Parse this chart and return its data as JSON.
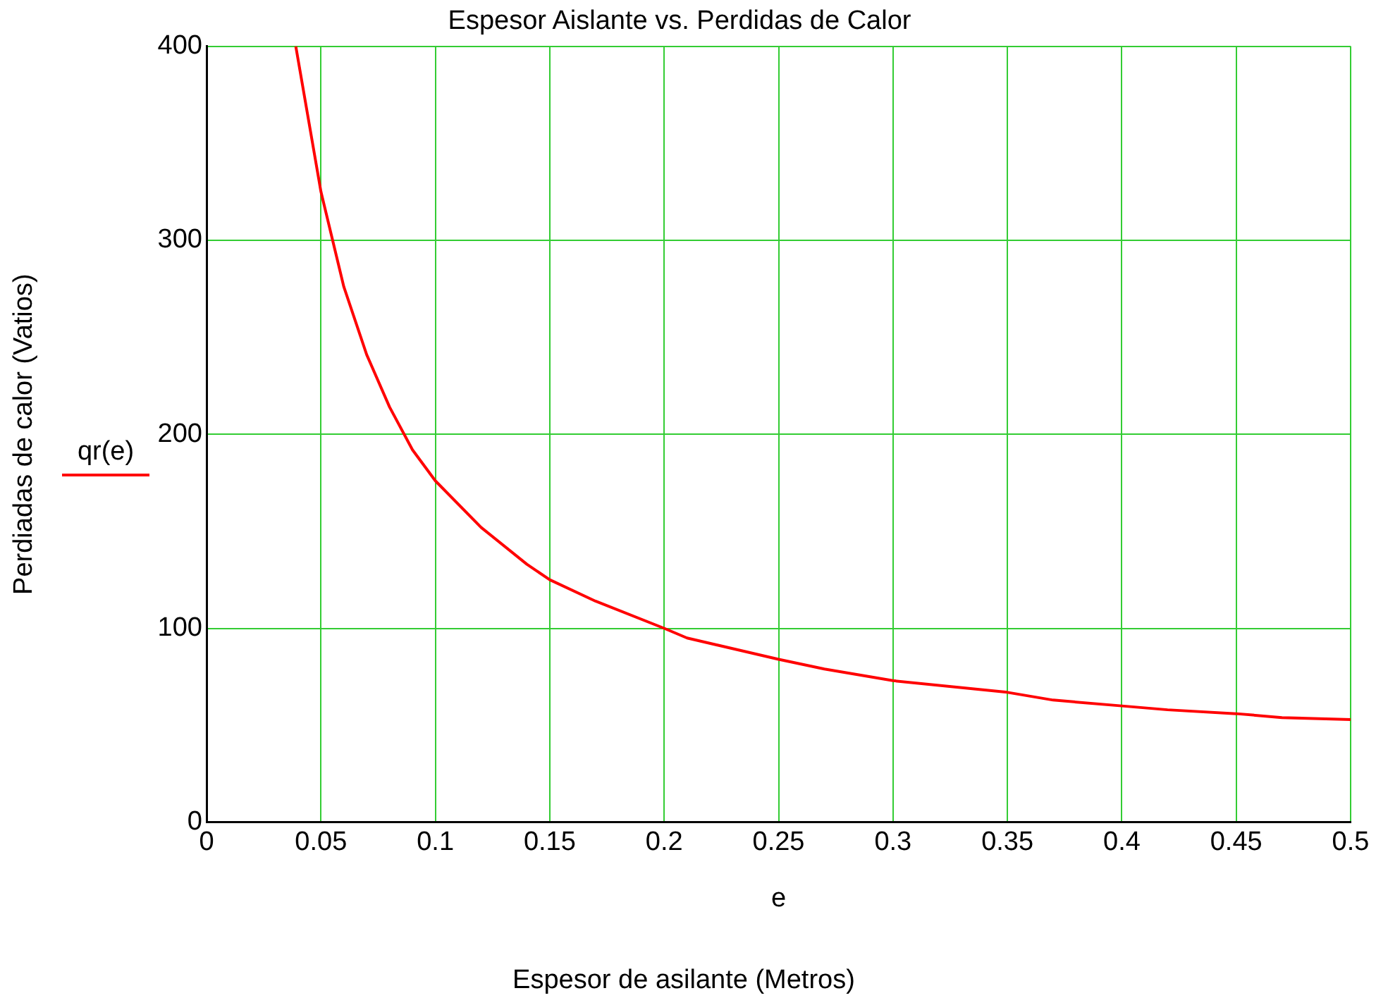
{
  "chart_data": {
    "type": "line",
    "title": "Espesor Aislante vs. Perdidas de Calor",
    "xlabel": "e",
    "ylabel": "Perdiadas de calor (Vatios)",
    "annotations": [
      "Espesor de asilante (Metros)"
    ],
    "x": [
      0.039,
      0.05,
      0.06,
      0.07,
      0.08,
      0.09,
      0.1,
      0.12,
      0.14,
      0.15,
      0.17,
      0.2,
      0.21,
      0.25,
      0.27,
      0.29,
      0.3,
      0.35,
      0.37,
      0.4,
      0.42,
      0.45,
      0.47,
      0.5
    ],
    "series": [
      {
        "name": "qr(e)",
        "color": "#ff0000",
        "values": [
          400,
          325,
          276,
          241,
          214,
          192,
          176,
          152,
          133,
          125,
          114,
          100,
          95,
          84,
          79,
          75,
          73,
          67,
          63,
          60,
          58,
          56,
          54,
          53
        ]
      }
    ],
    "xlim": [
      0,
      0.5
    ],
    "xticks": [
      0,
      0.05,
      0.1,
      0.15,
      0.2,
      0.25,
      0.3,
      0.35,
      0.4,
      0.45,
      0.5
    ],
    "ylim": [
      0,
      400
    ],
    "yticks": [
      0,
      100,
      200,
      300,
      400
    ],
    "grid": true,
    "legend": "left",
    "marker": "none",
    "line_style": "solid"
  }
}
